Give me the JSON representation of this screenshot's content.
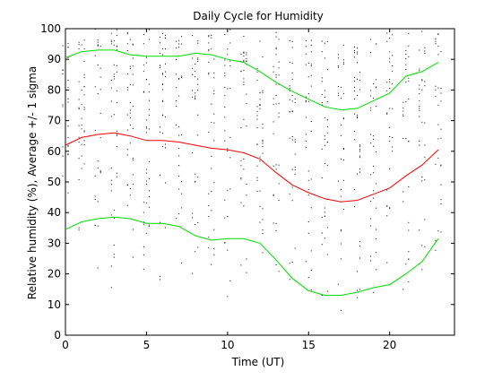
{
  "chart_data": {
    "type": "line",
    "title": "Daily Cycle for Humidity",
    "xlabel": "Time (UT)",
    "ylabel": "Relative humidity (%), Average +/- 1 sigma",
    "xlim": [
      0,
      24
    ],
    "ylim": [
      0,
      100
    ],
    "xticks": [
      0,
      5,
      10,
      15,
      20
    ],
    "yticks": [
      0,
      10,
      20,
      30,
      40,
      50,
      60,
      70,
      80,
      90,
      100
    ],
    "grid": false,
    "legend": "none",
    "x": [
      0,
      1,
      2,
      3,
      4,
      5,
      6,
      7,
      8,
      9,
      10,
      11,
      12,
      13,
      14,
      15,
      16,
      17,
      18,
      19,
      20,
      21,
      22,
      23
    ],
    "series": [
      {
        "role": "average+1sigma",
        "color": "#00dd00",
        "values": [
          90.5,
          92.5,
          93,
          93,
          91.5,
          91,
          91,
          91,
          92,
          91.5,
          90,
          89,
          86,
          82.5,
          79.5,
          77,
          74.5,
          73.5,
          74,
          76.5,
          79,
          84.5,
          86,
          89
        ]
      },
      {
        "role": "average",
        "color": "#ff0000",
        "values": [
          62,
          64.5,
          65.5,
          66,
          65,
          63.5,
          63.5,
          63,
          62,
          61,
          60.5,
          59.5,
          57.5,
          53,
          49,
          46.5,
          44.5,
          43.5,
          44,
          46,
          48,
          52,
          55.5,
          60.5
        ]
      },
      {
        "role": "average-1sigma",
        "color": "#00dd00",
        "values": [
          34.5,
          37,
          38,
          38.5,
          38,
          36.5,
          36.5,
          35.5,
          32.5,
          31,
          31.5,
          31.5,
          30,
          24.5,
          18.5,
          14.5,
          13,
          13,
          14,
          15.5,
          16.5,
          20,
          24,
          31.5
        ]
      }
    ],
    "scatter_points": {
      "color": "#000000",
      "ranges": [
        [
          18,
          98
        ],
        [
          18,
          99
        ],
        [
          15,
          100
        ],
        [
          12,
          100
        ],
        [
          14,
          99
        ],
        [
          15,
          100
        ],
        [
          14,
          99
        ],
        [
          13,
          100
        ],
        [
          11,
          100
        ],
        [
          10,
          100
        ],
        [
          10,
          100
        ],
        [
          9,
          99
        ],
        [
          9,
          99
        ],
        [
          8,
          99
        ],
        [
          7,
          97
        ],
        [
          6,
          97
        ],
        [
          6,
          96
        ],
        [
          6,
          96
        ],
        [
          7,
          96
        ],
        [
          8,
          98
        ],
        [
          10,
          100
        ],
        [
          12,
          100
        ],
        [
          15,
          100
        ],
        [
          18,
          100
        ]
      ]
    }
  }
}
